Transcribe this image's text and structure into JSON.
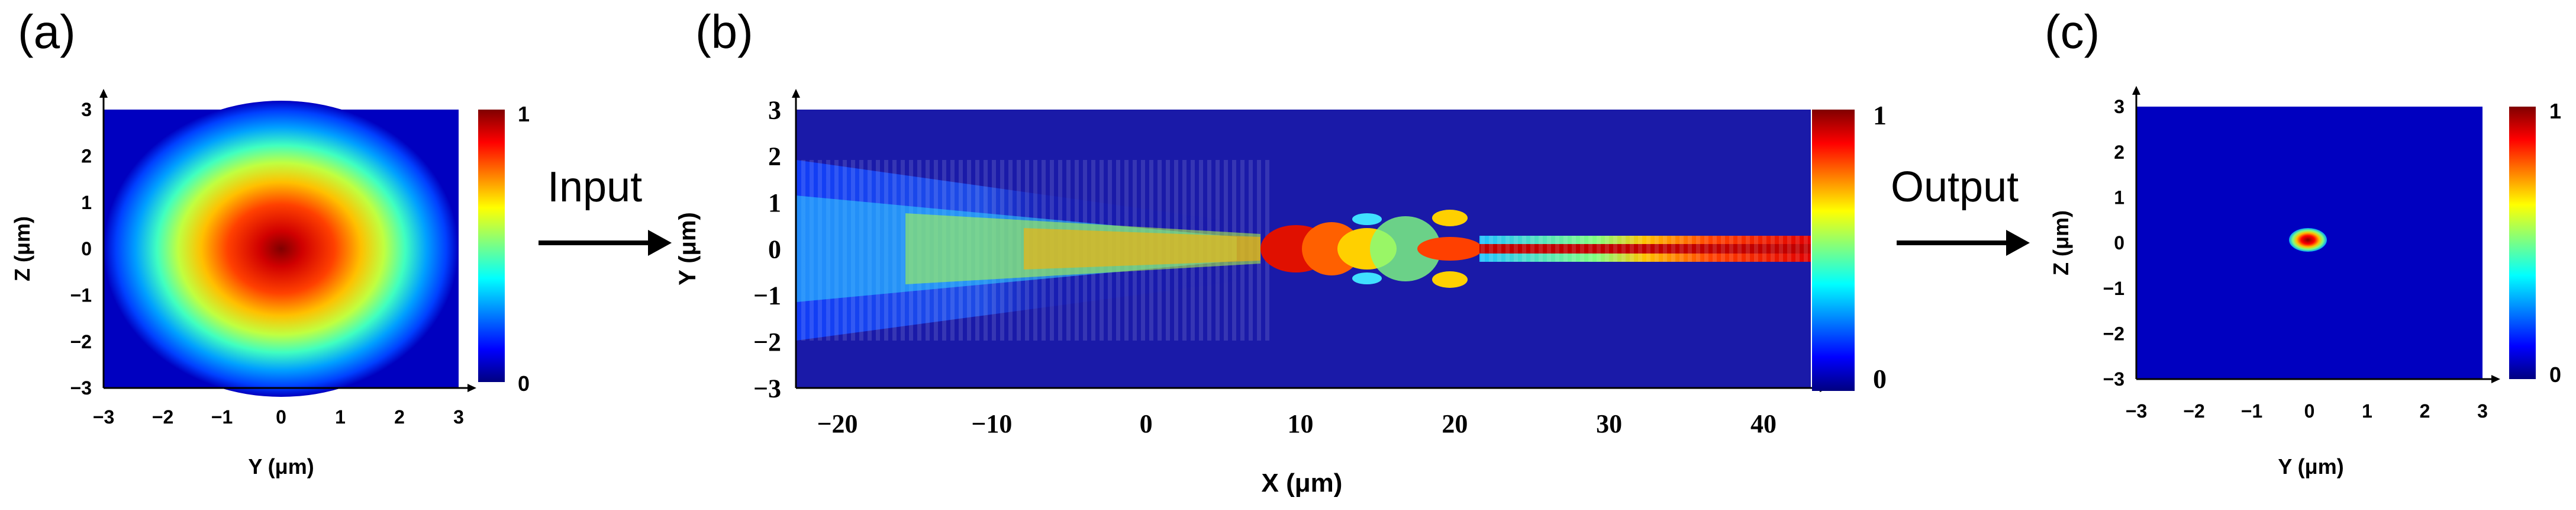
{
  "panels": {
    "a": {
      "label": "(a)",
      "xlabel": "Y (μm)",
      "ylabel": "Z (μm)",
      "xticks": [
        "−3",
        "−2",
        "−1",
        "0",
        "1",
        "2",
        "3"
      ],
      "yticks": [
        "3",
        "2",
        "1",
        "0",
        "−1",
        "−2",
        "−3"
      ],
      "colorbar": {
        "max": "1",
        "min": "0"
      }
    },
    "b": {
      "label": "(b)",
      "xlabel": "X (μm)",
      "ylabel": "Y (μm)",
      "xticks": [
        "−20",
        "−10",
        "0",
        "10",
        "20",
        "30",
        "40"
      ],
      "yticks": [
        "3",
        "2",
        "1",
        "0",
        "−1",
        "−2",
        "−3"
      ],
      "colorbar": {
        "max": "1",
        "min": "0"
      }
    },
    "c": {
      "label": "(c)",
      "xlabel": "Y (μm)",
      "ylabel": "Z (μm)",
      "xticks": [
        "−3",
        "−2",
        "−1",
        "0",
        "1",
        "2",
        "3"
      ],
      "yticks": [
        "3",
        "2",
        "1",
        "0",
        "−1",
        "−2",
        "−3"
      ],
      "colorbar": {
        "max": "1",
        "min": "0"
      }
    }
  },
  "flow": {
    "input_label": "Input",
    "output_label": "Output"
  },
  "colors": {
    "field_background": "#1a1aa8",
    "colormap": "jet"
  }
}
